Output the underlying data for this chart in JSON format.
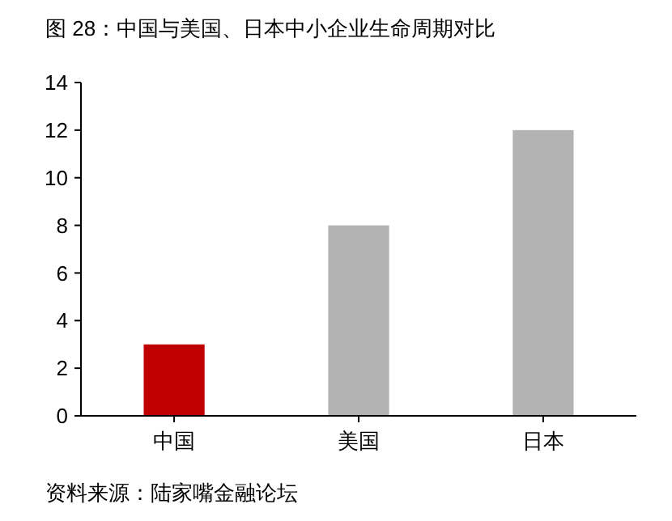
{
  "chart_data": {
    "type": "bar",
    "title": "图 28：中国与美国、日本中小企业生命周期对比",
    "categories": [
      "中国",
      "美国",
      "日本"
    ],
    "values": [
      3,
      8,
      12
    ],
    "colors": [
      "#c00000",
      "#b3b3b3",
      "#b3b3b3"
    ],
    "ylim": [
      0,
      14
    ],
    "yticks": [
      0,
      2,
      4,
      6,
      8,
      10,
      12,
      14
    ],
    "grid": false,
    "annotations": [
      "资料来源：陆家嘴金融论坛"
    ]
  }
}
